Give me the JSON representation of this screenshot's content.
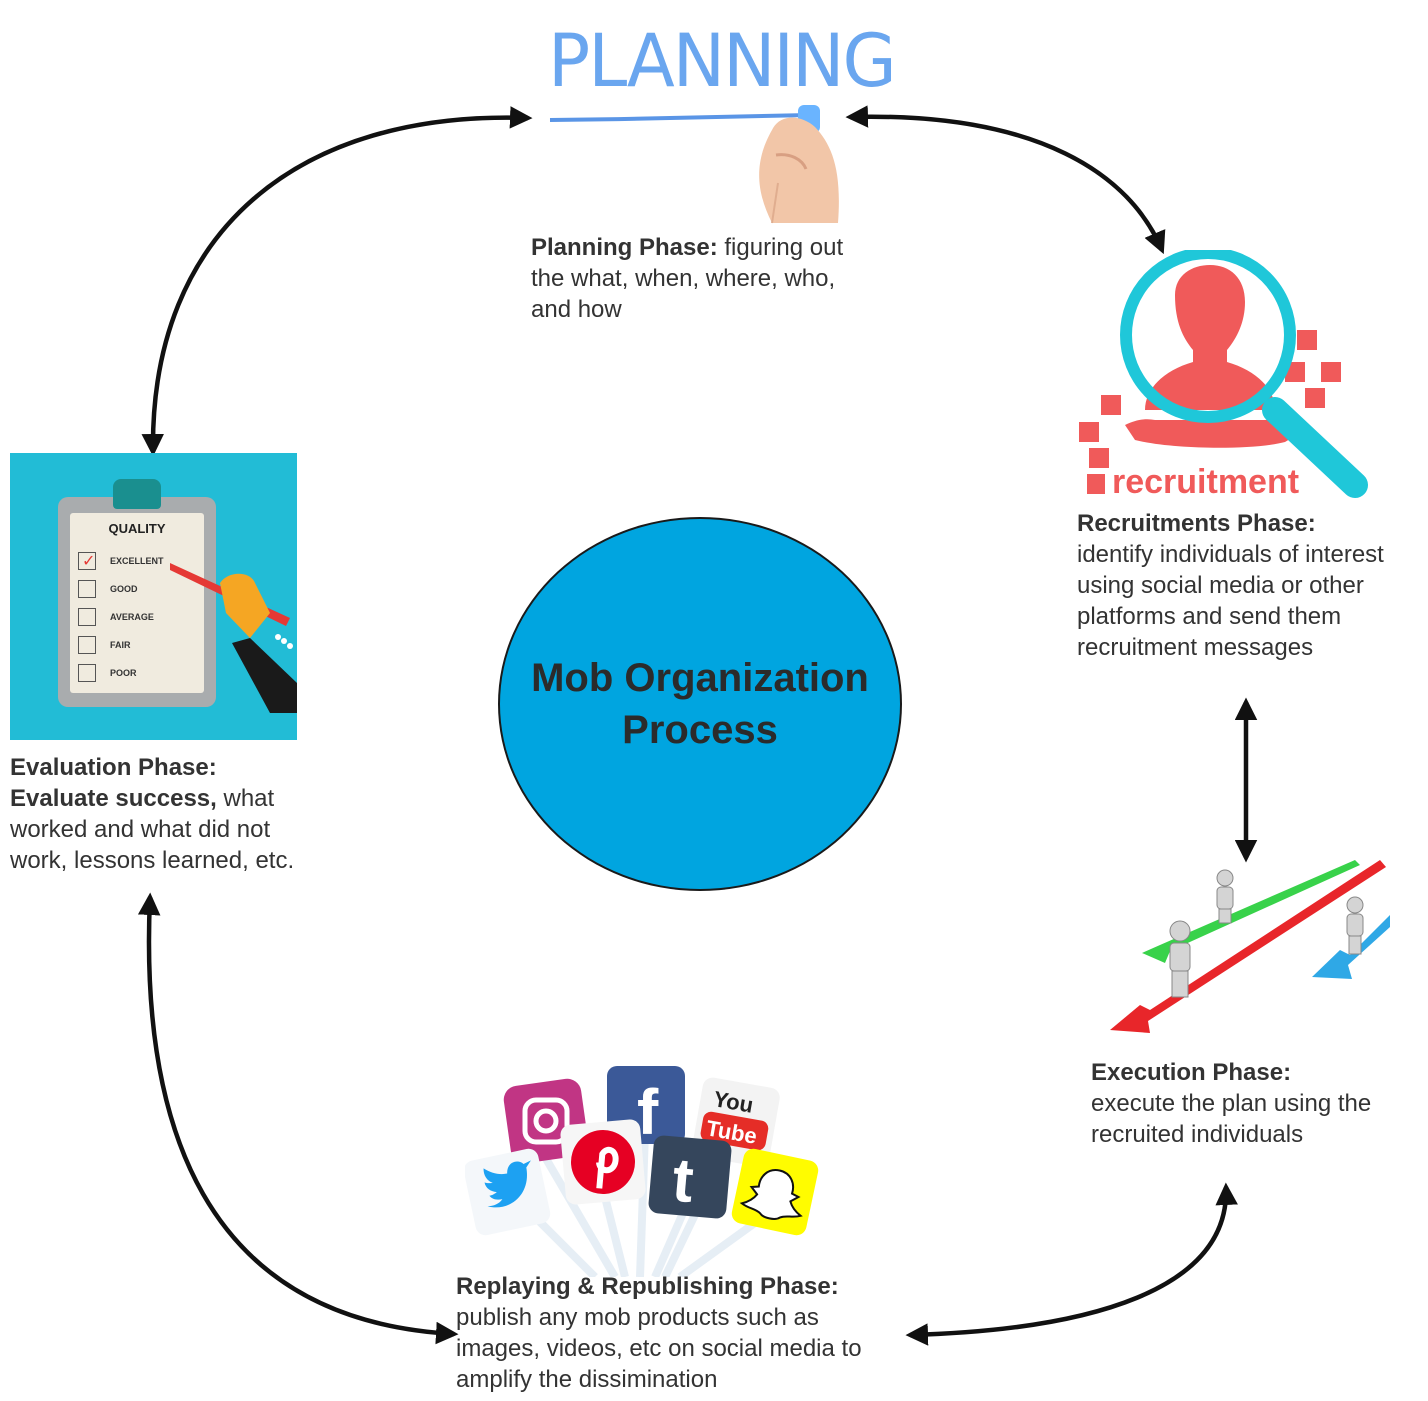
{
  "center": {
    "title": "Mob Organization Process"
  },
  "planning": {
    "image_word": "PLANNING",
    "heading": "Planning Phase:",
    "body": " figuring out the what, when, where, who, and how"
  },
  "recruitment": {
    "image_word": "recruitment",
    "heading": "Recruitments Phase:",
    "body": "identify individuals of interest using social media or other platforms and send them recruitment messages"
  },
  "execution": {
    "heading": "Execution Phase:",
    "body": "execute the plan using the recruited individuals"
  },
  "replaying": {
    "heading": "Replaying & Republishing Phase:",
    "body": "publish any mob products such as images, videos, etc on social media to amplify the dissimination"
  },
  "evaluation": {
    "heading": "Evaluation Phase:",
    "heading2": "Evaluate success,",
    "body": " what worked and what did not work, lessons learned, etc.",
    "clipboard": {
      "title": "QUALITY",
      "options": [
        "EXCELLENT",
        "GOOD",
        "AVERAGE",
        "FAIR",
        "POOR"
      ]
    }
  },
  "social_icons": {
    "youtube_top": "You",
    "youtube_bottom": "Tube",
    "facebook": "f",
    "tumblr": "t"
  },
  "colors": {
    "circle": "#00a5e0",
    "recruit_red": "#f05a5a",
    "recruit_cyan": "#1fc7d9",
    "planning_blue": "#6aa6ef",
    "eval_bg": "#22bcd6"
  }
}
